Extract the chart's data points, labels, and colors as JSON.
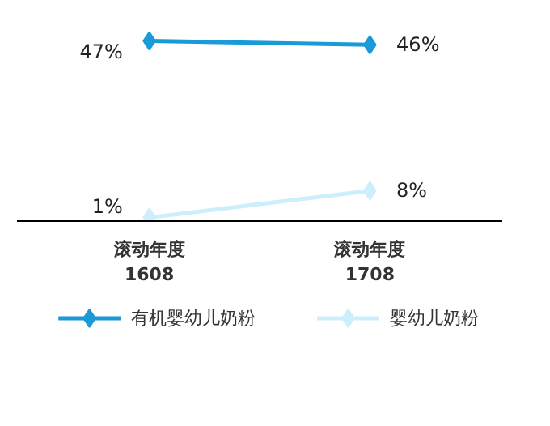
{
  "chart_data": {
    "type": "line",
    "categories": [
      "滚动年度\n1608",
      "滚动年度\n1708"
    ],
    "series": [
      {
        "name": "有机婴幼儿奶粉",
        "color": "#1a9ad6",
        "values": [
          47,
          46
        ],
        "value_labels": [
          "47%",
          "46%"
        ]
      },
      {
        "name": "婴幼儿奶粉",
        "color": "#cdeefc",
        "values": [
          1,
          8
        ],
        "value_labels": [
          "1%",
          "8%"
        ]
      }
    ],
    "marker": "diamond",
    "grid": false,
    "legend": "bottom",
    "tick_labels": "x"
  }
}
